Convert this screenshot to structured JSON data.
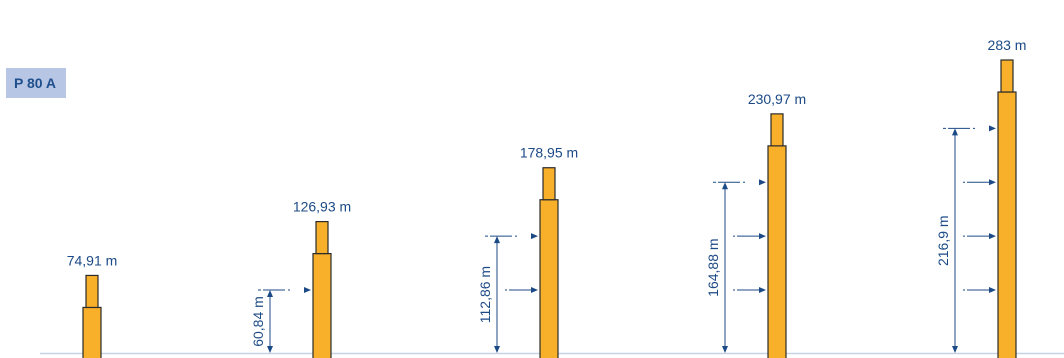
{
  "model_label": "P 80 A",
  "colors": {
    "mast": "#f8b02a",
    "mast_outline": "#2b2b2b",
    "annotation": "#1c4a86",
    "badge_bg": "#b7c6e4",
    "badge_text": "#1f4f8d",
    "ground": "#c8d2e6"
  },
  "diagram": {
    "columns": [
      {
        "height_label": "74,91 m",
        "height_m": 74.91,
        "anchor_height_label": "",
        "anchor_height_m": null,
        "tie_ins": []
      },
      {
        "height_label": "126,93 m",
        "height_m": 126.93,
        "anchor_height_label": "60,84 m",
        "anchor_height_m": 60.84,
        "tie_ins": [
          60.84
        ]
      },
      {
        "height_label": "178,95 m",
        "height_m": 178.95,
        "anchor_height_label": "112,86 m",
        "anchor_height_m": 112.86,
        "tie_ins": [
          60.84,
          112.86
        ]
      },
      {
        "height_label": "230,97 m",
        "height_m": 230.97,
        "anchor_height_label": "164,88 m",
        "anchor_height_m": 164.88,
        "tie_ins": [
          60.84,
          112.86,
          164.88
        ]
      },
      {
        "height_label": "283 m",
        "height_m": 283,
        "anchor_height_label": "216,9 m",
        "anchor_height_m": 216.9,
        "tie_ins": [
          60.84,
          112.86,
          164.88,
          216.9
        ]
      }
    ]
  }
}
